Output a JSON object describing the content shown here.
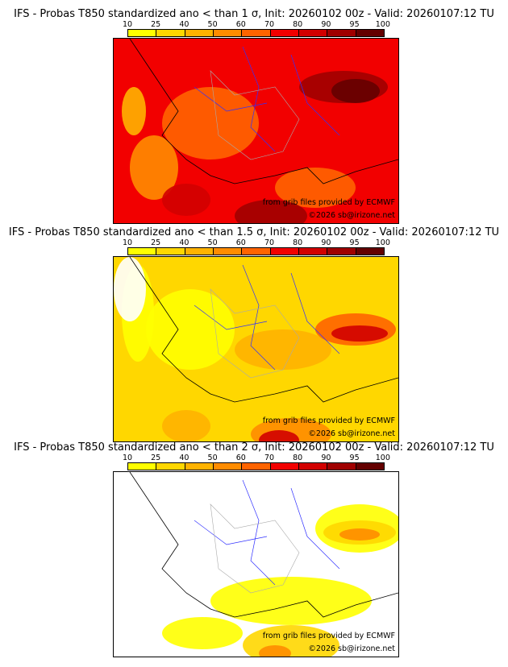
{
  "panels": [
    {
      "title": "IFS - Probas T850  standardized ano < than 1 σ, Init: 20260102 00z - Valid: 20260107:12 TU",
      "credit1": "from grib files provided by ECMWF",
      "credit2": "©2026 sb@irizone.net"
    },
    {
      "title": "IFS - Probas T850  standardized ano < than 1.5 σ, Init: 20260102 00z - Valid: 20260107:12 TU",
      "credit1": "from grib files provided by ECMWF",
      "credit2": "©2026 sb@irizone.net"
    },
    {
      "title": "IFS - Probas T850  standardized ano < than 2 σ, Init: 20260102 00z - Valid: 20260107:12 TU",
      "credit1": "from grib files provided by ECMWF",
      "credit2": "©2026 sb@irizone.net"
    }
  ],
  "colorbar": {
    "ticks": [
      "10",
      "25",
      "40",
      "50",
      "60",
      "70",
      "80",
      "90",
      "95",
      "100"
    ],
    "colors": [
      "#ffff00",
      "#ffd700",
      "#ffb300",
      "#ff8c00",
      "#ff6400",
      "#f20000",
      "#d20000",
      "#a00000",
      "#640000"
    ]
  }
}
